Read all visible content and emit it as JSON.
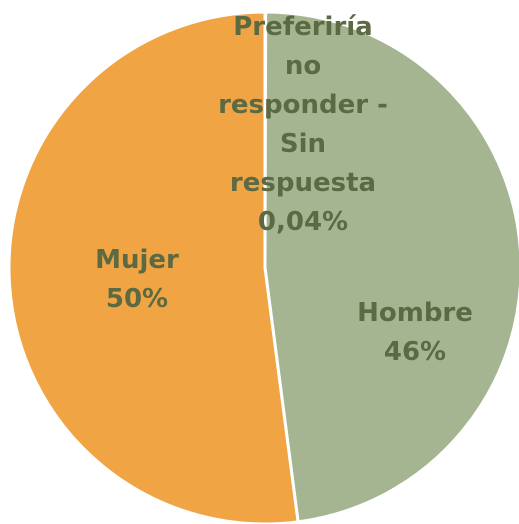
{
  "chart_data": {
    "type": "pie",
    "categories": [
      "Preferiría no responder - Sin respuesta",
      "Hombre",
      "Mujer"
    ],
    "values": [
      0.04,
      46,
      50
    ],
    "value_labels": [
      "0,04%",
      "46%",
      "50%"
    ],
    "colors": [
      "#d9d9d9",
      "#a5b592",
      "#f0a444"
    ]
  }
}
